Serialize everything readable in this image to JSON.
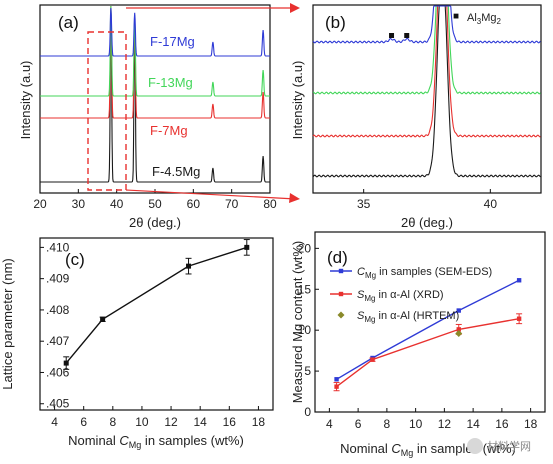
{
  "chart_data": [
    {
      "panel": "(a)",
      "type": "line",
      "xlabel": "2θ (deg.)",
      "ylabel": "Intensity (a.u)",
      "xlim": [
        20,
        80
      ],
      "xticks": [
        "20",
        "30",
        "40",
        "50",
        "60",
        "70",
        "80"
      ],
      "series": [
        {
          "name": "F-4.5Mg",
          "color": "#1a1a1a"
        },
        {
          "name": "F-7Mg",
          "color": "#e8312f"
        },
        {
          "name": "F-13Mg",
          "color": "#43d65a"
        },
        {
          "name": "F-17Mg",
          "color": "#2f3bd6"
        }
      ],
      "peaks_2theta": [
        38.5,
        44.7,
        65.1,
        78.2
      ]
    },
    {
      "panel": "(b)",
      "type": "line",
      "xlabel": "2θ (deg.)",
      "ylabel": "Intensity (a.u)",
      "xlim": [
        33,
        42
      ],
      "xticks": [
        "35",
        "40"
      ],
      "legend": {
        "marker": "■",
        "label_main": "Al",
        "label_sub1": "3",
        "label_mid": "Mg",
        "label_sub2": "2"
      },
      "phase_markers_2theta": [
        36.1,
        36.7
      ]
    },
    {
      "panel": "(c)",
      "type": "line",
      "xlabel_pre": "Nominal ",
      "xlabel_sym": "C",
      "xlabel_sub": "Mg",
      "xlabel_post": " in samples (wt%)",
      "ylabel": "Lattice parameter (nm)",
      "xlim": [
        3,
        19
      ],
      "ylim": [
        0.4048,
        0.4103
      ],
      "xticks": [
        "4",
        "6",
        "8",
        "10",
        "12",
        "14",
        "16",
        "18"
      ],
      "yticks": [
        ".405",
        ".406",
        ".407",
        ".408",
        ".409",
        ".410"
      ],
      "x": [
        4.8,
        7.3,
        13.2,
        17.2
      ],
      "y": [
        0.4063,
        0.4077,
        0.4094,
        0.41
      ],
      "err": [
        0.0002,
        7e-05,
        0.00025,
        0.00025
      ]
    },
    {
      "panel": "(d)",
      "type": "line",
      "xlabel_pre": "Nominal ",
      "xlabel_sym": "C",
      "xlabel_sub": "Mg",
      "xlabel_post": " in samples (wt%)",
      "ylabel": "Measured Mg content (wt%)",
      "xlim": [
        3,
        19
      ],
      "ylim": [
        0,
        22
      ],
      "xticks": [
        "4",
        "6",
        "8",
        "10",
        "12",
        "14",
        "16",
        "18"
      ],
      "yticks": [
        "0",
        "5",
        "10",
        "15",
        "20"
      ],
      "series": [
        {
          "sym": "C",
          "sub": "Mg",
          "text": " in samples (SEM-EDS)",
          "color": "#2f3bd6",
          "marker": "square",
          "x": [
            4.5,
            7,
            13,
            17.2
          ],
          "y": [
            4.0,
            6.6,
            12.4,
            16.1
          ]
        },
        {
          "sym": "S",
          "sub": "Mg",
          "text": " in α-Al (XRD)",
          "color": "#e8312f",
          "marker": "square",
          "x": [
            4.5,
            7,
            13,
            17.2
          ],
          "y": [
            3.1,
            6.4,
            10.1,
            11.4
          ],
          "err": [
            0.5,
            0.2,
            0.6,
            0.6
          ]
        },
        {
          "sym": "S",
          "sub": "Mg",
          "text": " in α-Al (HRTEM)",
          "color": "#8a8a2a",
          "marker": "diamond",
          "x": [
            13
          ],
          "y": [
            9.6
          ]
        }
      ]
    }
  ],
  "watermark": "材料学网"
}
